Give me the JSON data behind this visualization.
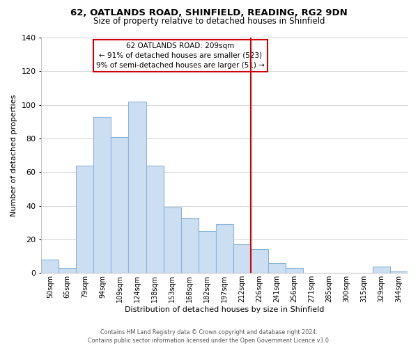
{
  "title1": "62, OATLANDS ROAD, SHINFIELD, READING, RG2 9DN",
  "title2": "Size of property relative to detached houses in Shinfield",
  "xlabel": "Distribution of detached houses by size in Shinfield",
  "ylabel": "Number of detached properties",
  "bar_labels": [
    "50sqm",
    "65sqm",
    "79sqm",
    "94sqm",
    "109sqm",
    "124sqm",
    "138sqm",
    "153sqm",
    "168sqm",
    "182sqm",
    "197sqm",
    "212sqm",
    "226sqm",
    "241sqm",
    "256sqm",
    "271sqm",
    "285sqm",
    "300sqm",
    "315sqm",
    "329sqm",
    "344sqm"
  ],
  "bar_values": [
    8,
    3,
    64,
    93,
    81,
    102,
    64,
    39,
    33,
    25,
    29,
    17,
    14,
    6,
    3,
    0,
    0,
    0,
    0,
    4,
    1
  ],
  "bar_color": "#ccdff2",
  "bar_edge_color": "#88b4d8",
  "vline_x_index": 11,
  "vline_color": "#cc0000",
  "ylim": [
    0,
    140
  ],
  "yticks": [
    0,
    20,
    40,
    60,
    80,
    100,
    120,
    140
  ],
  "annotation_title": "62 OATLANDS ROAD: 209sqm",
  "annotation_line1": "← 91% of detached houses are smaller (523)",
  "annotation_line2": "9% of semi-detached houses are larger (51) →",
  "footer1": "Contains HM Land Registry data © Crown copyright and database right 2024.",
  "footer2": "Contains public sector information licensed under the Open Government Licence v3.0."
}
